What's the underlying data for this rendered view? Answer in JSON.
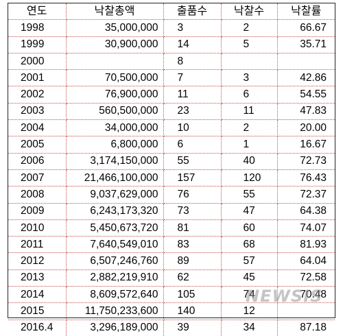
{
  "headers": [
    "연도",
    "낙찰총액",
    "출품수",
    "낙찰수",
    "낙찰률"
  ],
  "rows": [
    {
      "year": "1998",
      "amount": "35,000,000",
      "items": "3",
      "bids": "2",
      "rate": "66.67"
    },
    {
      "year": "1999",
      "amount": "30,900,000",
      "items": "14",
      "bids": "5",
      "rate": "35.71"
    },
    {
      "year": "2000",
      "amount": "",
      "items": "8",
      "bids": "",
      "rate": ""
    },
    {
      "year": "2001",
      "amount": "70,500,000",
      "items": "7",
      "bids": "3",
      "rate": "42.86"
    },
    {
      "year": "2002",
      "amount": "76,900,000",
      "items": "11",
      "bids": "6",
      "rate": "54.55"
    },
    {
      "year": "2003",
      "amount": "560,500,000",
      "items": "23",
      "bids": "11",
      "rate": "47.83"
    },
    {
      "year": "2004",
      "amount": "34,000,000",
      "items": "10",
      "bids": "2",
      "rate": "20.00"
    },
    {
      "year": "2005",
      "amount": "6,800,000",
      "items": "6",
      "bids": "1",
      "rate": "16.67"
    },
    {
      "year": "2006",
      "amount": "3,174,150,000",
      "items": "55",
      "bids": "40",
      "rate": "72.73"
    },
    {
      "year": "2007",
      "amount": "21,466,100,000",
      "items": "157",
      "bids": "120",
      "rate": "76.43"
    },
    {
      "year": "2008",
      "amount": "9,037,629,000",
      "items": "76",
      "bids": "55",
      "rate": "72.37"
    },
    {
      "year": "2009",
      "amount": "6,243,173,320",
      "items": "73",
      "bids": "47",
      "rate": "64.38"
    },
    {
      "year": "2010",
      "amount": "5,450,673,720",
      "items": "81",
      "bids": "60",
      "rate": "74.07"
    },
    {
      "year": "2011",
      "amount": "7,640,549,010",
      "items": "83",
      "bids": "68",
      "rate": "81.93"
    },
    {
      "year": "2012",
      "amount": "6,507,246,760",
      "items": "89",
      "bids": "57",
      "rate": "64.04"
    },
    {
      "year": "2013",
      "amount": "2,882,219,910",
      "items": "62",
      "bids": "45",
      "rate": "72.58"
    },
    {
      "year": "2014",
      "amount": "8,609,572,640",
      "items": "105",
      "bids": "74",
      "rate": "70.48"
    },
    {
      "year": "2015",
      "amount": "11,750,233,600",
      "items": "140",
      "bids": "12",
      "rate": ""
    },
    {
      "year": "2016.4",
      "amount": "3,296,189,000",
      "items": "39",
      "bids": "34",
      "rate": "87.18"
    }
  ],
  "watermark": "NEWSIS",
  "colors": {
    "grid": "#c0504d",
    "border": "#222222"
  }
}
